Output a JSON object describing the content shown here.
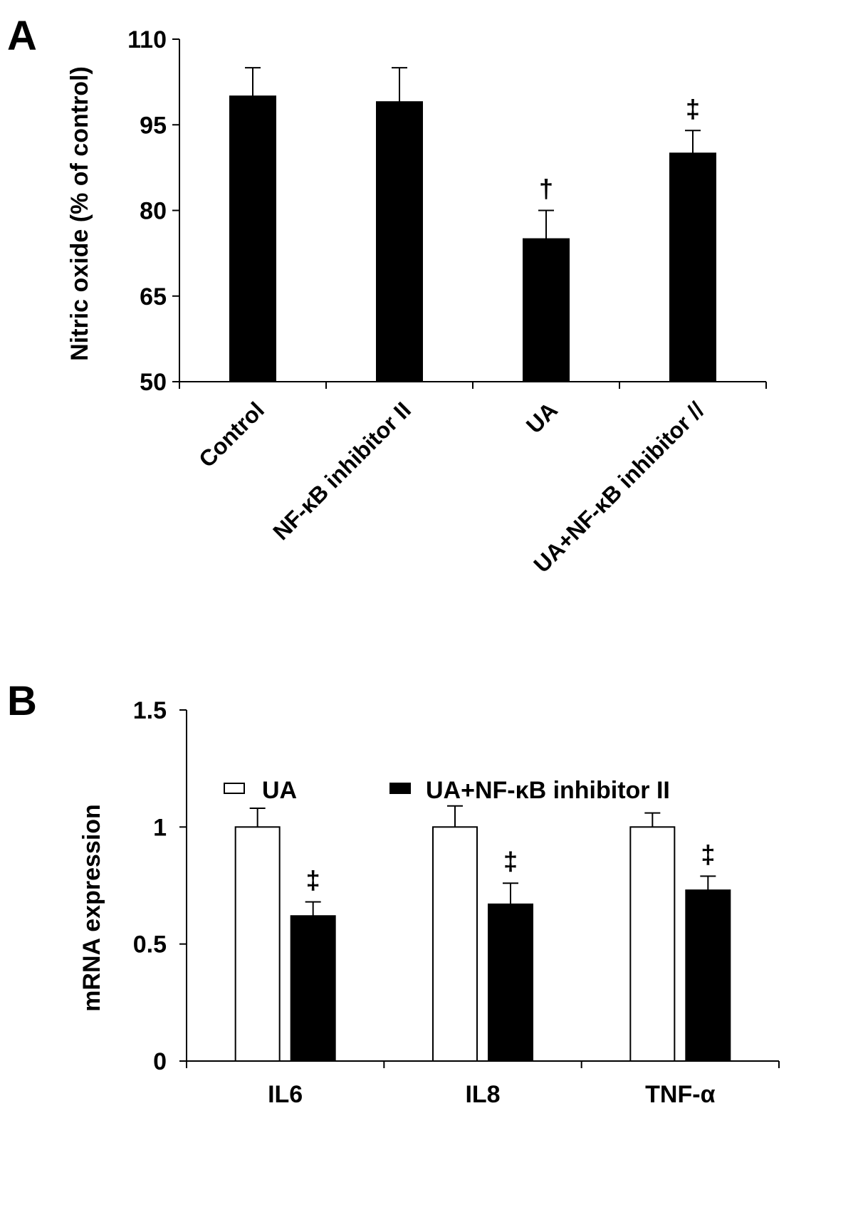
{
  "chart_data": [
    {
      "panel": "A",
      "type": "bar",
      "ylabel": "Nitric oxide (% of control)",
      "ylim": [
        50,
        110
      ],
      "yticks": [
        "50",
        "65",
        "80",
        "95",
        "110"
      ],
      "categories": [
        "Control",
        "NF-κB inhibitor II",
        "UA",
        "UA+NF-κB inhibitor //"
      ],
      "series": [
        {
          "values": [
            100,
            99,
            75,
            90
          ],
          "errors": [
            5,
            6,
            5,
            4
          ],
          "color": "#000000"
        }
      ],
      "annotations": [
        "",
        "",
        "†",
        "‡"
      ]
    },
    {
      "panel": "B",
      "type": "bar",
      "ylabel": "mRNA expression",
      "ylim": [
        0,
        1.5
      ],
      "yticks": [
        "0",
        "0.5",
        "1",
        "1.5"
      ],
      "categories": [
        "IL6",
        "IL8",
        "TNF-α"
      ],
      "legend_position": "top",
      "series": [
        {
          "name": "UA",
          "values": [
            1.0,
            1.0,
            1.0
          ],
          "errors": [
            0.08,
            0.09,
            0.06
          ],
          "color": "#ffffff",
          "annotations": [
            "",
            "",
            ""
          ]
        },
        {
          "name": "UA+NF-κB inhibitor II",
          "values": [
            0.62,
            0.67,
            0.73
          ],
          "errors": [
            0.06,
            0.09,
            0.06
          ],
          "color": "#000000",
          "annotations": [
            "‡",
            "‡",
            "‡"
          ]
        }
      ]
    }
  ]
}
